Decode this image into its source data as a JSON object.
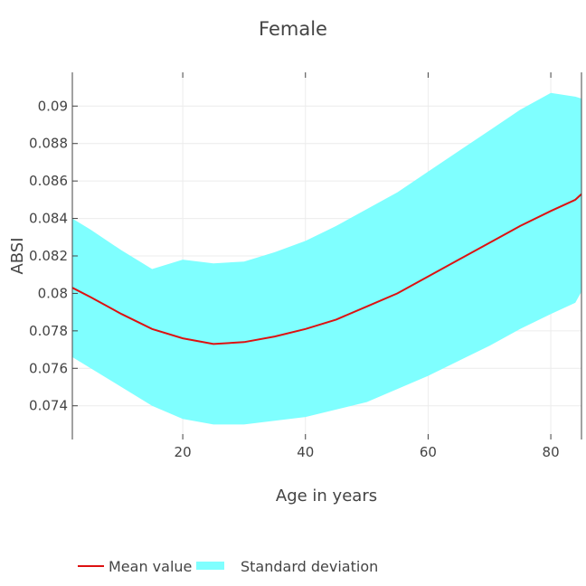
{
  "chart_data": {
    "type": "line",
    "title": "Female",
    "xlabel": "Age in years",
    "ylabel": "ABSI",
    "xlim": [
      2,
      85
    ],
    "ylim": [
      0.0722,
      0.0918
    ],
    "xticks": [
      20,
      40,
      60,
      80
    ],
    "xtick_labels": [
      "20",
      "40",
      "60",
      "80"
    ],
    "yticks": [
      0.074,
      0.076,
      0.078,
      0.08,
      0.082,
      0.084,
      0.086,
      0.088,
      0.09
    ],
    "ytick_labels": [
      "0.074",
      "0.076",
      "0.078",
      "0.08",
      "0.082",
      "0.084",
      "0.086",
      "0.088",
      "0.09"
    ],
    "grid": true,
    "legend_position": "bottom",
    "x": [
      2,
      5,
      10,
      15,
      20,
      25,
      30,
      35,
      40,
      45,
      50,
      55,
      60,
      65,
      70,
      75,
      80,
      84,
      85
    ],
    "series": [
      {
        "name": "Mean value",
        "kind": "line",
        "color": "#dd1111",
        "values": [
          0.0803,
          0.0798,
          0.0789,
          0.0781,
          0.0776,
          0.0773,
          0.0774,
          0.0777,
          0.0781,
          0.0786,
          0.0793,
          0.08,
          0.0809,
          0.0818,
          0.0827,
          0.0836,
          0.0844,
          0.085,
          0.0853
        ]
      },
      {
        "name": "Standard deviation",
        "kind": "band",
        "color": "#7fffff",
        "upper": [
          0.084,
          0.0834,
          0.0823,
          0.0813,
          0.0818,
          0.0816,
          0.0817,
          0.0822,
          0.0828,
          0.0836,
          0.0845,
          0.0854,
          0.0865,
          0.0876,
          0.0887,
          0.0898,
          0.0907,
          0.0905,
          0.0904
        ],
        "lower": [
          0.0766,
          0.076,
          0.075,
          0.074,
          0.0733,
          0.073,
          0.073,
          0.0732,
          0.0734,
          0.0738,
          0.0742,
          0.0749,
          0.0756,
          0.0764,
          0.0772,
          0.0781,
          0.0789,
          0.0795,
          0.0801
        ]
      }
    ]
  }
}
